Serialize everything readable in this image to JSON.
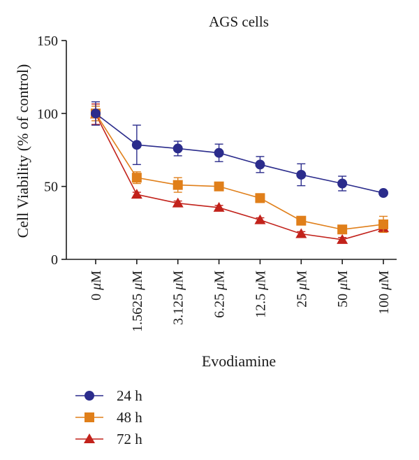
{
  "chart_data": {
    "type": "line",
    "title": "AGS cells",
    "xlabel": "Evodiamine",
    "ylabel": "Cell Viability (% of control)",
    "ylim": [
      0,
      150
    ],
    "yticks": [
      0,
      50,
      100,
      150
    ],
    "categories": [
      "0 μM",
      "1.5625 μM",
      "3.125 μM",
      "6.25 μM",
      "12.5 μM",
      "25 μM",
      "50 μM",
      "100 μM"
    ],
    "legend_position": "bottom-left",
    "grid": false,
    "series": [
      {
        "name": "24 h",
        "marker": "circle",
        "color": "#2b2c8c",
        "values": [
          100,
          78.5,
          76,
          73,
          65,
          58,
          52,
          45.5
        ],
        "errors": [
          8,
          13.5,
          5,
          6,
          5.5,
          7.5,
          5,
          1.5
        ]
      },
      {
        "name": "48 h",
        "marker": "square",
        "color": "#e07f1a",
        "values": [
          100,
          56,
          51,
          50,
          42,
          26.5,
          20.5,
          24
        ],
        "errors": [
          5,
          4,
          5,
          2,
          3,
          2,
          2,
          5.5
        ]
      },
      {
        "name": "72 h",
        "marker": "triangle",
        "color": "#c2221b",
        "values": [
          99.5,
          44.5,
          38.5,
          35.5,
          27,
          17.5,
          13.5,
          21.5
        ],
        "errors": [
          7,
          1.5,
          1.5,
          1.5,
          1.5,
          1.5,
          1.5,
          1.5
        ]
      }
    ]
  }
}
